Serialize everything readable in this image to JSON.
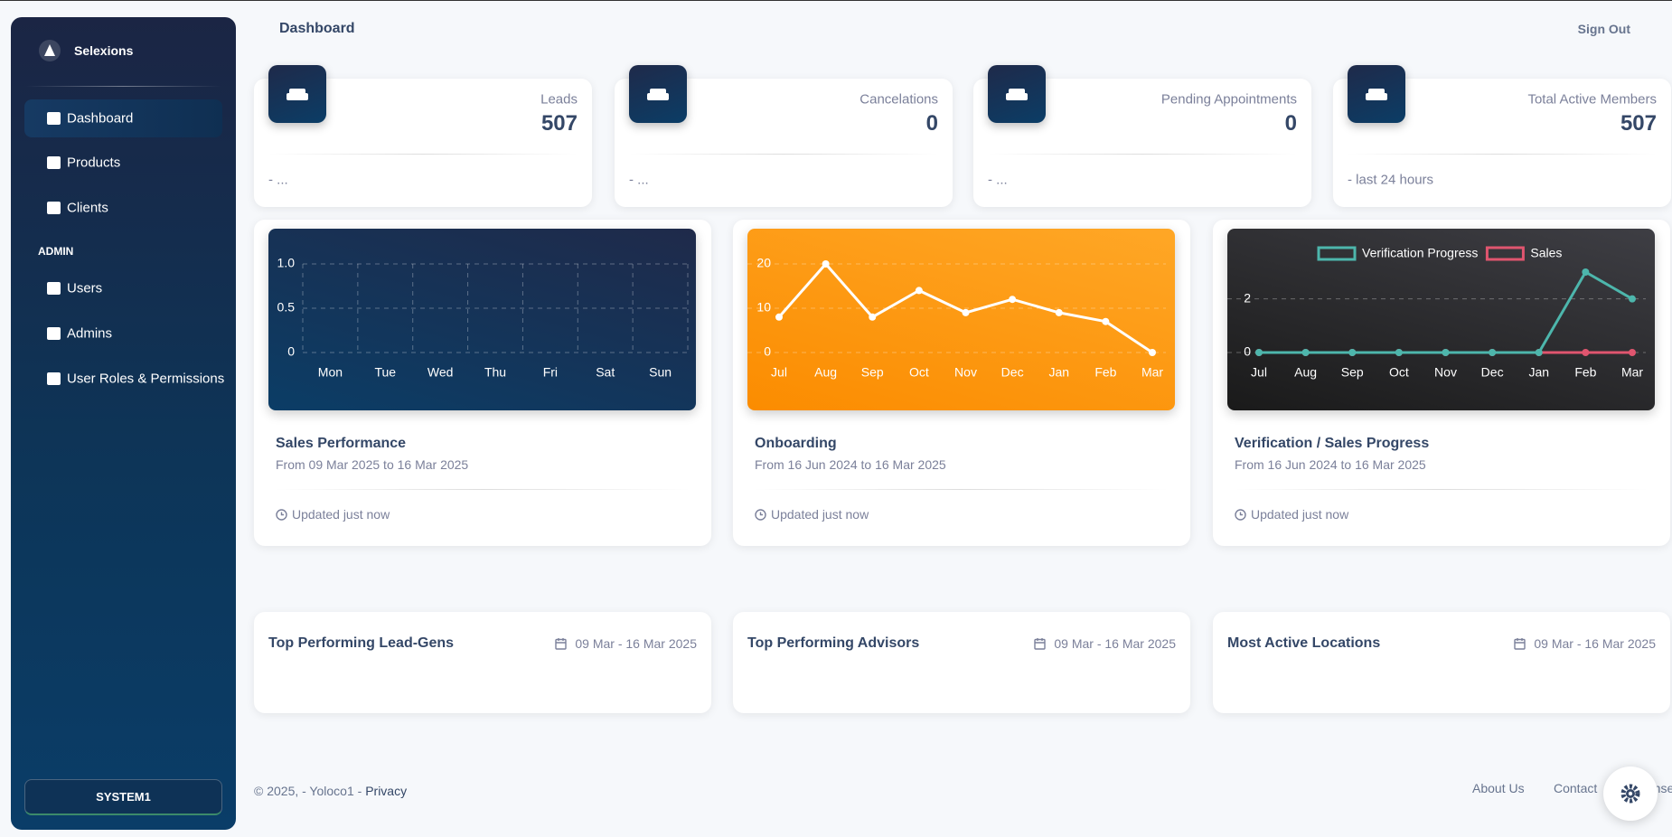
{
  "sidebar": {
    "brand": "Selexions",
    "nav": [
      "Dashboard",
      "Products",
      "Clients"
    ],
    "section": "ADMIN",
    "admin_nav": [
      "Users",
      "Admins",
      "User Roles & Permissions"
    ],
    "footer_button": "SYSTEM1"
  },
  "header": {
    "title": "Dashboard",
    "sign_out": "Sign Out"
  },
  "stats": [
    {
      "label": "Leads",
      "value": 507,
      "note": "- ..."
    },
    {
      "label": "Cancelations",
      "value": 0,
      "note": "- ..."
    },
    {
      "label": "Pending Appointments",
      "value": 0,
      "note": "- ..."
    },
    {
      "label": "Total Active Members",
      "value": 507,
      "note": "- last 24 hours"
    }
  ],
  "charts": [
    {
      "type": "bar",
      "title": "Sales Performance",
      "subtitle": "From 09 Mar 2025 to 16 Mar 2025",
      "updated": "Updated just now",
      "categories": [
        "Mon",
        "Tue",
        "Wed",
        "Thu",
        "Fri",
        "Sat",
        "Sun"
      ],
      "ylim": [
        0,
        1
      ],
      "yticks": [
        0,
        0.5,
        {
          "value": 1,
          "label": "1.0"
        }
      ],
      "grid": true
    },
    {
      "type": "line",
      "title": "Onboarding",
      "subtitle": "From 16 Jun 2024 to 16 Mar 2025",
      "updated": "Updated just now",
      "categories": [
        "Jul",
        "Aug",
        "Sep",
        "Oct",
        "Nov",
        "Dec",
        "Jan",
        "Feb",
        "Mar"
      ],
      "series": [
        {
          "name": "Onboarding",
          "color": "#ffffff",
          "values": [
            8,
            20,
            8,
            14,
            9,
            12,
            9,
            7,
            0
          ]
        }
      ],
      "ylim": [
        0,
        20
      ],
      "yticks": [
        0,
        10,
        20
      ],
      "grid": true
    },
    {
      "type": "line",
      "title": "Verification / Sales Progress",
      "subtitle": "From 16 Jun 2024 to 16 Mar 2025",
      "updated": "Updated just now",
      "categories": [
        "Jul",
        "Aug",
        "Sep",
        "Oct",
        "Nov",
        "Dec",
        "Jan",
        "Feb",
        "Mar"
      ],
      "series": [
        {
          "name": "Verification Progress",
          "color": "#4db6ac",
          "values": [
            0,
            0,
            0,
            0,
            0,
            0,
            0,
            3,
            2
          ]
        },
        {
          "name": "Sales",
          "color": "#e0556f",
          "values": [
            0,
            0,
            0,
            0,
            0,
            0,
            0,
            0,
            0
          ]
        }
      ],
      "ylim": [
        0,
        3
      ],
      "yticks": [
        0,
        2
      ],
      "grid": true,
      "legend": "top"
    }
  ],
  "lists": [
    {
      "title": "Top Performing Lead-Gens",
      "date": "09 Mar - 16 Mar 2025"
    },
    {
      "title": "Top Performing Advisors",
      "date": "09 Mar - 16 Mar 2025"
    },
    {
      "title": "Most Active Locations",
      "date": "09 Mar - 16 Mar 2025"
    }
  ],
  "footer": {
    "copyright": "© 2025, - Yoloco1 -",
    "privacy": "Privacy",
    "links": [
      "About Us",
      "Contact",
      "License"
    ]
  }
}
